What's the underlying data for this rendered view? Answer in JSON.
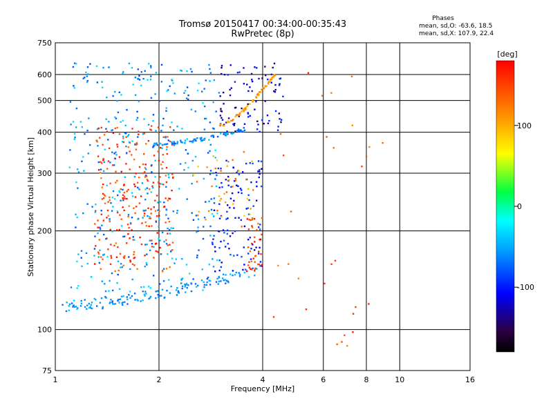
{
  "chart_data": {
    "type": "scatter",
    "title": "Tromsø 20150417 00:34:00-00:35:43",
    "subtitle": "RwPretec (8p)",
    "xlabel": "Frequency [MHz]",
    "ylabel": "Stationary phase Virtual Height [km]",
    "xscale": "log",
    "yscale": "log",
    "xlim": [
      1,
      16
    ],
    "ylim": [
      75,
      750
    ],
    "x_ticks": [
      "1",
      "2",
      "4",
      "6",
      "8",
      "10",
      "16"
    ],
    "x_tick_values": [
      1,
      2,
      4,
      6,
      8,
      10,
      16
    ],
    "y_ticks": [
      "75",
      "100",
      "200",
      "300",
      "400",
      "500",
      "600",
      "750"
    ],
    "y_tick_values": [
      75,
      100,
      200,
      300,
      400,
      500,
      600,
      750
    ],
    "grid": true,
    "colorbar": {
      "label": "[deg]",
      "range": [
        -180,
        180
      ],
      "ticks": [
        "100",
        "0",
        "-100"
      ],
      "tick_values": [
        100,
        0,
        -100
      ]
    },
    "phases_box": {
      "title": "Phases",
      "line1": "mean, sd,O: -63.6, 18.5",
      "line2": "mean, sd,X: 107.9, 22.4"
    },
    "traces": [
      {
        "name": "",
        "x_range": [
          1.05,
          3.9
        ],
        "h_start": 118,
        "h_end": 152,
        "color_deg": -55,
        "count": 140
      },
      {
        "name": "",
        "x_range": [
          1.9,
          3.6
        ],
        "h_start": 365,
        "h_end": 410,
        "color_deg": -60,
        "count": 80
      },
      {
        "name": "",
        "x_range": [
          3.0,
          4.4
        ],
        "h_start": 420,
        "h_end": 610,
        "color_deg": 110,
        "count": 70
      }
    ],
    "clouds": [
      {
        "x_range": [
          1.3,
          2.2
        ],
        "h_range": [
          150,
          420
        ],
        "color_deg": 150,
        "count": 260
      },
      {
        "x_range": [
          1.1,
          3.0
        ],
        "h_range": [
          130,
          650
        ],
        "color_deg": -55,
        "count": 420
      },
      {
        "x_range": [
          2.8,
          4.0
        ],
        "h_range": [
          150,
          330
        ],
        "color_deg": -100,
        "count": 120
      },
      {
        "x_range": [
          3.0,
          4.6
        ],
        "h_range": [
          400,
          650
        ],
        "color_deg": -120,
        "count": 90
      },
      {
        "x_range": [
          3.6,
          4.0
        ],
        "h_range": [
          150,
          220
        ],
        "color_deg": 150,
        "count": 40
      },
      {
        "x_range": [
          2.5,
          3.8
        ],
        "h_range": [
          200,
          350
        ],
        "color_deg": 110,
        "count": 40
      },
      {
        "x_range": [
          4.2,
          9.0
        ],
        "h_range": [
          85,
          620
        ],
        "color_deg": 140,
        "count": 30
      }
    ]
  }
}
